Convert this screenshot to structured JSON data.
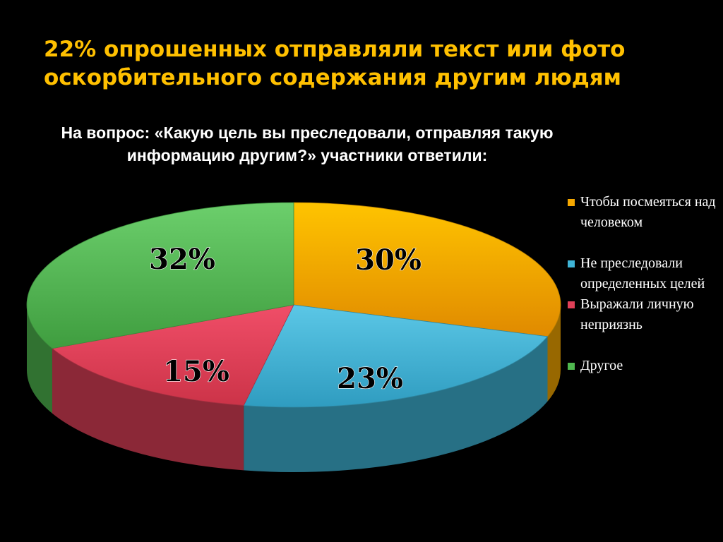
{
  "headline": "22% опрошенных отправляли текст или фото оскорбительного содержания другим людям",
  "question": "На вопрос: «Какую цель вы преследовали, отправляя такую информацию другим?» участники ответили:",
  "chart_data": {
    "type": "pie",
    "title": "",
    "series": [
      {
        "name": "Чтобы посмеяться над человеком",
        "value": 30,
        "label": "30%",
        "color": "#f5a800"
      },
      {
        "name": "Не преследовали определенных целей",
        "value": 23,
        "label": "23%",
        "color": "#3fb4d6"
      },
      {
        "name": "Выражали личную неприязнь",
        "value": 15,
        "label": "15%",
        "color": "#e04058"
      },
      {
        "name": "Другое",
        "value": 32,
        "label": "32%",
        "color": "#4fb84f"
      }
    ],
    "legend_position": "right",
    "style": "3d"
  }
}
